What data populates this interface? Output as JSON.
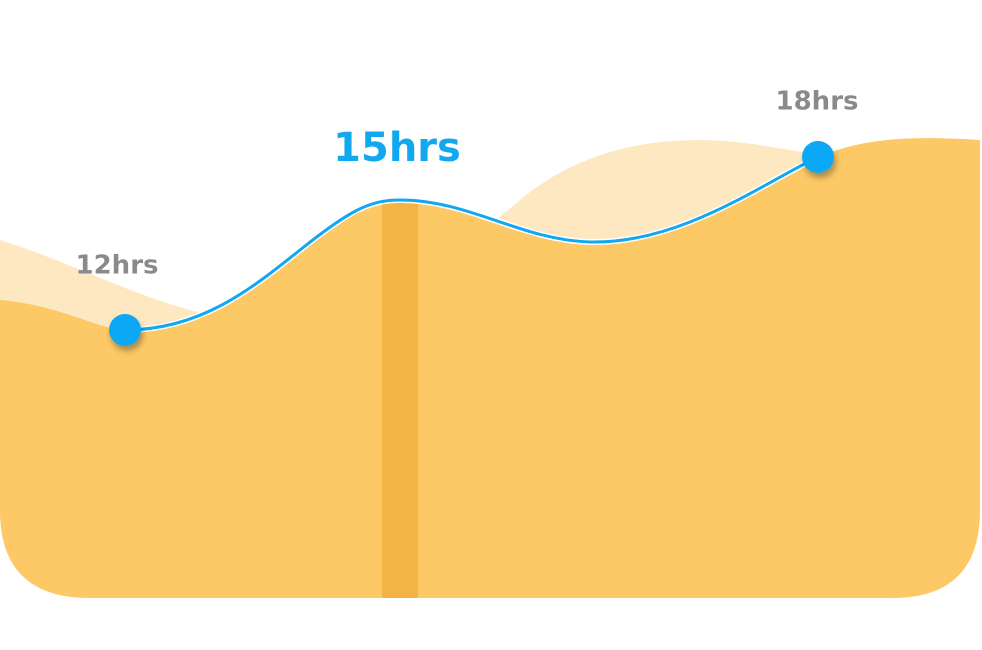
{
  "points": [
    {
      "label": "12hrs"
    },
    {
      "label": "15hrs"
    },
    {
      "label": "18hrs"
    }
  ]
}
